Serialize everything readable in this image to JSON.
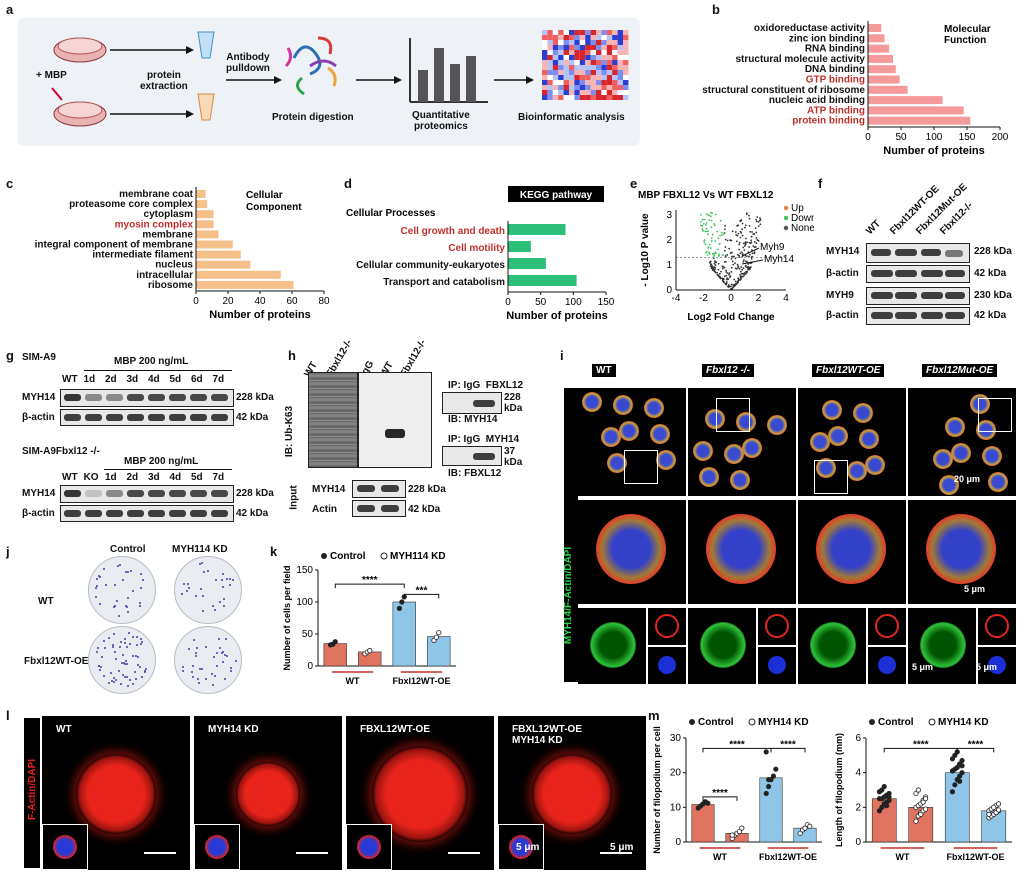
{
  "panels": {
    "a": {
      "label": "a",
      "mbp": "+ MBP",
      "protein_extraction": "protein\nextraction",
      "antibody": "Antibody\npulldown",
      "step1": "Protein digestion",
      "step2": "Quantitative\nproteomics",
      "step3": "Bioinformatic analysis"
    },
    "b": {
      "label": "b",
      "title": "Molecular\nFunction",
      "xlabel": "Number of proteins",
      "ticks": [
        "0",
        "50",
        "100",
        "150",
        "200"
      ]
    },
    "c": {
      "label": "c",
      "title": "Cellular\nComponent",
      "xlabel": "Number of proteins",
      "ticks": [
        "0",
        "20",
        "40",
        "60",
        "80"
      ]
    },
    "d": {
      "label": "d",
      "header": "KEGG pathway",
      "group": "Cellular Processes",
      "xlabel": "Number of proteins",
      "ticks": [
        "0",
        "50",
        "100",
        "150"
      ]
    },
    "e": {
      "label": "e",
      "title": "MBP FBXL12 Vs WT FBXL12",
      "legend": [
        "Up",
        "Down",
        "None"
      ],
      "ylabel": "- Log10 P value",
      "xlabel": "Log2 Fold Change",
      "xticks": [
        "-4",
        "-2",
        "0",
        "2",
        "4"
      ],
      "yticks": [
        "0",
        "1",
        "2",
        "3"
      ],
      "gene1": "Myh9",
      "gene2": "Myh14"
    },
    "f": {
      "label": "f",
      "lanes": [
        "WT",
        "Fbxl12WT-OE",
        "Fbxl12Mut-OE",
        "Fbxl12-/-"
      ],
      "rows": [
        {
          "name": "MYH14",
          "kda": "228 kDa"
        },
        {
          "name": "β-actin",
          "kda": "42 kDa"
        },
        {
          "name": "MYH9",
          "kda": "230 kDa"
        },
        {
          "name": "β-actin",
          "kda": "42 kDa"
        }
      ]
    },
    "g": {
      "label": "g",
      "top_title": "SIM-A9",
      "top_treat": "MBP 200 ng/mL",
      "top_lanes": [
        "WT",
        "1d",
        "2d",
        "3d",
        "4d",
        "5d",
        "6d",
        "7d"
      ],
      "bot_title": "SIM-A9Fbxl12 -/-",
      "bot_treat": "MBP 200 ng/mL",
      "bot_lanes": [
        "WT",
        "KO",
        "1d",
        "2d",
        "3d",
        "4d",
        "5d",
        "7d"
      ],
      "row1": "MYH14",
      "row2": "β-actin",
      "kda1": "228 kDa",
      "kda2": "42 kDa"
    },
    "h": {
      "label": "h",
      "lanes_left": [
        "WT",
        "Fbxl12-/-"
      ],
      "lanes_right": [
        "IgG",
        "WT",
        "Fbxl12-/-"
      ],
      "ib_ub": "IB: Ub-K63",
      "ip1": "IP: IgG  FBXL12",
      "ib1": "IB: MYH14",
      "kda1": "228\nkDa",
      "ip2": "IP: IgG  MYH14",
      "ib2": "IB: FBXL12",
      "kda2": "37\nkDa",
      "input": "Input",
      "in_row1": "MYH14",
      "in_row2": "Actin",
      "in_kda1": "228 kDa",
      "in_kda2": "42 kDa"
    },
    "i": {
      "label": "i",
      "cols": [
        "WT",
        "Fbxl12 -/-",
        "Fbxl12WT-OE",
        "Fbxl12Mut-OE"
      ],
      "side": "MYH14/F-Actin/DAPI",
      "scale1": "20 μm",
      "scale2": "5 μm",
      "scale3": "5 μm",
      "scale4": "5 μm"
    },
    "j": {
      "label": "j",
      "cols": [
        "Control",
        "MYH114 KD"
      ],
      "rows": [
        "WT",
        "Fbxl12WT-OE"
      ]
    },
    "k": {
      "label": "k",
      "legend": [
        "Control",
        "MYH114 KD"
      ],
      "ylabel": "Number of cells per field",
      "yticks": [
        "0",
        "50",
        "100",
        "150"
      ],
      "groups": [
        "WT",
        "Fbxl12WT-OE"
      ],
      "sig1": "****",
      "sig2": "***"
    },
    "l": {
      "label": "l",
      "side": "F-Actin/DAPI",
      "titles": [
        "WT",
        "MYH14 KD",
        "FBXL12WT-OE",
        "FBXL12WT-OE\nMYH14 KD"
      ],
      "scale1": "5 μm",
      "scale2": "5 μm"
    },
    "m": {
      "label": "m",
      "legend": [
        "Control",
        "MYH14 KD"
      ],
      "ylabel1": "Number of filopodium per cell",
      "ylabel2": "Length of filopodium (mm)",
      "yticks1": [
        "0",
        "10",
        "20",
        "30"
      ],
      "yticks2": [
        "0",
        "2",
        "4",
        "6"
      ],
      "groups": [
        "WT",
        "Fbxl12WT-OE"
      ],
      "sig": "****"
    }
  },
  "chart_data": [
    {
      "type": "bar",
      "title": "Molecular Function",
      "xlabel": "Number of proteins",
      "orientation": "horizontal",
      "xlim": [
        0,
        200
      ],
      "categories": [
        "oxidoreductase activity",
        "zinc ion binding",
        "RNA binding",
        "structural molecule activity",
        "DNA binding",
        "GTP binding",
        "structural constituent of ribosome",
        "nucleic acid binding",
        "ATP binding",
        "protein binding"
      ],
      "highlight": [
        "GTP binding",
        "ATP binding",
        "protein binding"
      ],
      "values": [
        20,
        25,
        32,
        38,
        42,
        48,
        60,
        113,
        145,
        155
      ],
      "color": "#f49a9a"
    },
    {
      "type": "bar",
      "title": "Cellular Component",
      "xlabel": "Number of proteins",
      "orientation": "horizontal",
      "xlim": [
        0,
        80
      ],
      "categories": [
        "membrane coat",
        "proteasome core complex",
        "cytoplasm",
        "myosin complex",
        "membrane",
        "integral component of membrane",
        "intermediate filament",
        "nucleus",
        "intracellular",
        "ribosome"
      ],
      "highlight": [
        "myosin complex"
      ],
      "values": [
        6,
        7,
        11,
        11,
        14,
        23,
        28,
        34,
        53,
        61
      ],
      "color": "#f6c08a"
    },
    {
      "type": "bar",
      "title": "KEGG pathway",
      "xlabel": "Number of proteins",
      "orientation": "horizontal",
      "xlim": [
        0,
        150
      ],
      "categories": [
        "Cell growth and death",
        "Cell motility",
        "Cellular community-eukaryotes",
        "Transport and catabolism"
      ],
      "highlight": [
        "Cell growth and death",
        "Cell motility"
      ],
      "values": [
        88,
        35,
        58,
        105
      ],
      "color": "#2bbf7a"
    },
    {
      "type": "bar",
      "ylabel": "Number of cells per field",
      "ylim": [
        0,
        150
      ],
      "categories": [
        "WT",
        "Fbxl12WT-OE"
      ],
      "series": [
        {
          "name": "Control",
          "values": [
            35,
            100
          ],
          "points": [
            [
              33,
              34,
              38
            ],
            [
              90,
              100,
              108
            ]
          ]
        },
        {
          "name": "MYH114 KD",
          "values": [
            22,
            46
          ],
          "points": [
            [
              19,
              22,
              24
            ],
            [
              40,
              45,
              52
            ]
          ]
        }
      ]
    },
    {
      "type": "bar",
      "ylabel": "Number of filopodium per cell",
      "ylim": [
        0,
        30
      ],
      "categories": [
        "WT",
        "Fbxl12WT-OE"
      ],
      "series": [
        {
          "name": "Control",
          "values": [
            10.8,
            18.5
          ],
          "points": [
            [
              9.8,
              10.4,
              11,
              11.6,
              11.2
            ],
            [
              14,
              16,
              18,
              19,
              21,
              26,
              18
            ]
          ]
        },
        {
          "name": "MYH14 KD",
          "values": [
            2.5,
            4
          ],
          "points": [
            [
              1,
              2,
              2.5,
              3,
              4,
              2
            ],
            [
              2.5,
              3.5,
              4,
              5,
              4.5
            ]
          ]
        }
      ]
    },
    {
      "type": "bar",
      "ylabel": "Length of filopodium (mm)",
      "ylim": [
        0,
        6
      ],
      "categories": [
        "WT",
        "Fbxl12WT-OE"
      ],
      "series": [
        {
          "name": "Control",
          "values": [
            2.5,
            4
          ],
          "points": [
            [
              1.8,
              2,
              2.2,
              2.3,
              2.4,
              2.5,
              2.5,
              2.6,
              2.7,
              2.8,
              2.9,
              3,
              3.2,
              2.1,
              2.6
            ],
            [
              2.9,
              3.3,
              3.6,
              3.8,
              4,
              4.1,
              4.2,
              4.3,
              4.5,
              4.7,
              4.8,
              5,
              5.2,
              3.5,
              4.4
            ]
          ]
        },
        {
          "name": "MYH14 KD",
          "values": [
            2,
            1.8
          ],
          "points": [
            [
              1.2,
              1.5,
              1.7,
              1.8,
              1.9,
              2,
              2.1,
              2.2,
              2.4,
              2.6,
              2.8,
              3,
              1.6,
              2.3,
              2.5
            ],
            [
              1.4,
              1.5,
              1.6,
              1.7,
              1.8,
              1.8,
              1.9,
              2,
              2.1,
              2.2,
              1.6,
              1.9,
              2,
              1.7,
              1.85
            ]
          ]
        }
      ]
    },
    {
      "type": "scatter",
      "title": "MBP FBXL12 Vs WT FBXL12",
      "xlabel": "Log2 Fold Change",
      "ylabel": "- Log10 P value",
      "xlim": [
        -4,
        4
      ],
      "ylim": [
        0,
        3.2
      ],
      "series": [
        {
          "name": "Up"
        },
        {
          "name": "Down"
        },
        {
          "name": "None"
        }
      ],
      "annotations": [
        "Myh9",
        "Myh14"
      ]
    }
  ]
}
